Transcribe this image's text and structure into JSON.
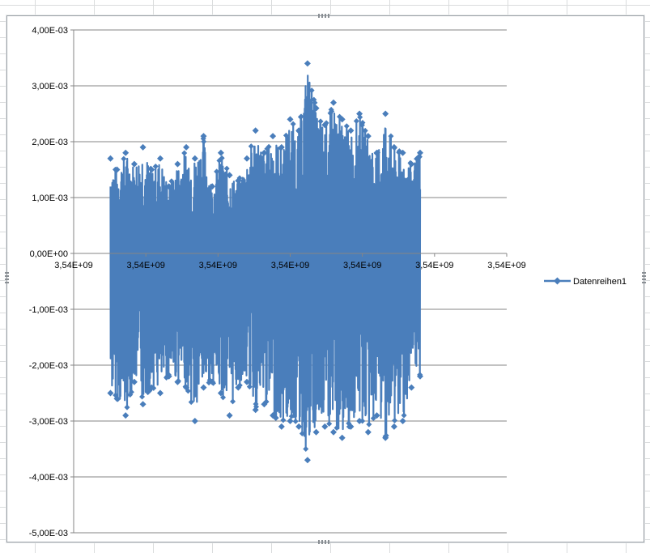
{
  "chart_data": {
    "type": "line",
    "title": "",
    "xlabel": "",
    "ylabel": "",
    "x_tick_labels": [
      "3,54E+09",
      "3,54E+09",
      "3,54E+09",
      "3,54E+09",
      "3,54E+09",
      "3,54E+09",
      "3,54E+09"
    ],
    "y_ticks": [
      0.004,
      0.003,
      0.002,
      0.001,
      0.0,
      -0.001,
      -0.002,
      -0.003,
      -0.004,
      -0.005
    ],
    "y_tick_labels": [
      "4,00E-03",
      "3,00E-03",
      "2,00E-03",
      "1,00E-03",
      "0,00E+00",
      "-1,00E-03",
      "-2,00E-03",
      "-3,00E-03",
      "-4,00E-03",
      "-5,00E-03"
    ],
    "ylim": [
      -0.005,
      0.004
    ],
    "xlim_fraction": [
      0.0,
      1.0
    ],
    "data_extent_fraction": [
      0.085,
      0.8
    ],
    "grid": "horizontal",
    "legend": {
      "position": "right",
      "entries": [
        {
          "label": "Datenreihen1",
          "color": "#4a7ebb",
          "marker": "diamond"
        }
      ]
    },
    "series": [
      {
        "name": "Datenreihen1",
        "color": "#4a7ebb",
        "envelope": {
          "note_x": "x as fraction of axis width",
          "x": [
            0.085,
            0.1,
            0.12,
            0.14,
            0.16,
            0.18,
            0.2,
            0.22,
            0.24,
            0.26,
            0.28,
            0.3,
            0.32,
            0.34,
            0.36,
            0.38,
            0.4,
            0.42,
            0.44,
            0.46,
            0.48,
            0.5,
            0.52,
            0.54,
            0.56,
            0.58,
            0.6,
            0.62,
            0.64,
            0.66,
            0.68,
            0.7,
            0.72,
            0.74,
            0.76,
            0.78,
            0.8
          ],
          "max": [
            0.0017,
            0.0015,
            0.0018,
            0.0016,
            0.0019,
            0.0015,
            0.0017,
            0.0012,
            0.0016,
            0.0019,
            0.0017,
            0.0021,
            0.0012,
            0.0018,
            0.0014,
            0.0013,
            0.0017,
            0.0022,
            0.0018,
            0.0021,
            0.0019,
            0.0024,
            0.0022,
            0.0034,
            0.0026,
            0.0023,
            0.0027,
            0.0024,
            0.0022,
            0.0025,
            0.0021,
            0.0018,
            0.0025,
            0.0019,
            0.0018,
            0.0016,
            0.0018
          ],
          "min": [
            -0.0025,
            -0.0026,
            -0.0029,
            -0.0023,
            -0.0027,
            -0.0024,
            -0.0025,
            -0.0022,
            -0.0023,
            -0.0024,
            -0.003,
            -0.0024,
            -0.0023,
            -0.0025,
            -0.0029,
            -0.0024,
            -0.0023,
            -0.0028,
            -0.0027,
            -0.0029,
            -0.0031,
            -0.003,
            -0.0031,
            -0.0037,
            -0.0032,
            -0.0031,
            -0.0032,
            -0.0033,
            -0.0031,
            -0.003,
            -0.0032,
            -0.0029,
            -0.0033,
            -0.0031,
            -0.003,
            -0.0024,
            -0.0022
          ]
        }
      }
    ]
  }
}
